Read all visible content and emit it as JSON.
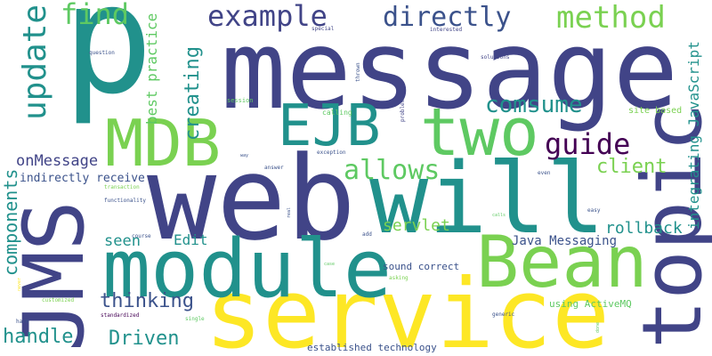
{
  "palette": {
    "dark_purple": "#440154",
    "indigo": "#3b528b",
    "slate": "#414487",
    "teal": "#21918c",
    "green": "#5ec962",
    "lime": "#7ad151",
    "yellow": "#fde725"
  },
  "words": [
    {
      "key": "p",
      "text": "p"
    },
    {
      "key": "message",
      "text": "message"
    },
    {
      "key": "web",
      "text": "web"
    },
    {
      "key": "will",
      "text": "will"
    },
    {
      "key": "service",
      "text": "service"
    },
    {
      "key": "module",
      "text": "module"
    },
    {
      "key": "jms",
      "text": "JMS"
    },
    {
      "key": "topic",
      "text": "topic"
    },
    {
      "key": "bean",
      "text": "Bean"
    },
    {
      "key": "mdb",
      "text": "MDB"
    },
    {
      "key": "two",
      "text": "two"
    },
    {
      "key": "ejb",
      "text": "EJB"
    },
    {
      "key": "example",
      "text": "example"
    },
    {
      "key": "directly",
      "text": "directly"
    },
    {
      "key": "method",
      "text": "method"
    },
    {
      "key": "find",
      "text": "find"
    },
    {
      "key": "update",
      "text": "update"
    },
    {
      "key": "guide",
      "text": "guide"
    },
    {
      "key": "comsume",
      "text": "comsume"
    },
    {
      "key": "allows",
      "text": "allows"
    },
    {
      "key": "client",
      "text": "client"
    },
    {
      "key": "creating",
      "text": "creating"
    },
    {
      "key": "best_practice",
      "text": "best practice"
    },
    {
      "key": "integrating_javascript",
      "text": "integrating JavaScript"
    },
    {
      "key": "components",
      "text": "components"
    },
    {
      "key": "onmessage",
      "text": "onMessage"
    },
    {
      "key": "indirectly_receive",
      "text": "indirectly receive"
    },
    {
      "key": "rollback",
      "text": "rollback"
    },
    {
      "key": "seen",
      "text": "seen"
    },
    {
      "key": "edit",
      "text": "Edit"
    },
    {
      "key": "servlet",
      "text": "servlet"
    },
    {
      "key": "java_messaging",
      "text": "Java Messaging"
    },
    {
      "key": "sound_correct",
      "text": "sound correct"
    },
    {
      "key": "thinking",
      "text": "thinking"
    },
    {
      "key": "handle",
      "text": "handle"
    },
    {
      "key": "driven",
      "text": "Driven"
    },
    {
      "key": "using_activemq",
      "text": "using ActiveMQ"
    },
    {
      "key": "established_technology",
      "text": "established technology"
    },
    {
      "key": "site_based",
      "text": "site based"
    },
    {
      "key": "special",
      "text": "special"
    },
    {
      "key": "interested",
      "text": "interested"
    },
    {
      "key": "question",
      "text": "question"
    },
    {
      "key": "solutions",
      "text": "solutions"
    },
    {
      "key": "thrown",
      "text": "thrown"
    },
    {
      "key": "session",
      "text": "session"
    },
    {
      "key": "calling",
      "text": "calling"
    },
    {
      "key": "problem",
      "text": "problem"
    },
    {
      "key": "way",
      "text": "way"
    },
    {
      "key": "exception",
      "text": "exception"
    },
    {
      "key": "answer",
      "text": "answer"
    },
    {
      "key": "even",
      "text": "even"
    },
    {
      "key": "transaction",
      "text": "transaction"
    },
    {
      "key": "functionality",
      "text": "functionality"
    },
    {
      "key": "real",
      "text": "real"
    },
    {
      "key": "calls",
      "text": "calls"
    },
    {
      "key": "easy",
      "text": "easy"
    },
    {
      "key": "add",
      "text": "add"
    },
    {
      "key": "course",
      "text": "course"
    },
    {
      "key": "case",
      "text": "case"
    },
    {
      "key": "asking",
      "text": "asking"
    },
    {
      "key": "customized",
      "text": "customized"
    },
    {
      "key": "standardized",
      "text": "standardized"
    },
    {
      "key": "single",
      "text": "single"
    },
    {
      "key": "harm",
      "text": "harm"
    },
    {
      "key": "generic",
      "text": "generic"
    },
    {
      "key": "done",
      "text": "done"
    },
    {
      "key": "never",
      "text": "never"
    }
  ]
}
